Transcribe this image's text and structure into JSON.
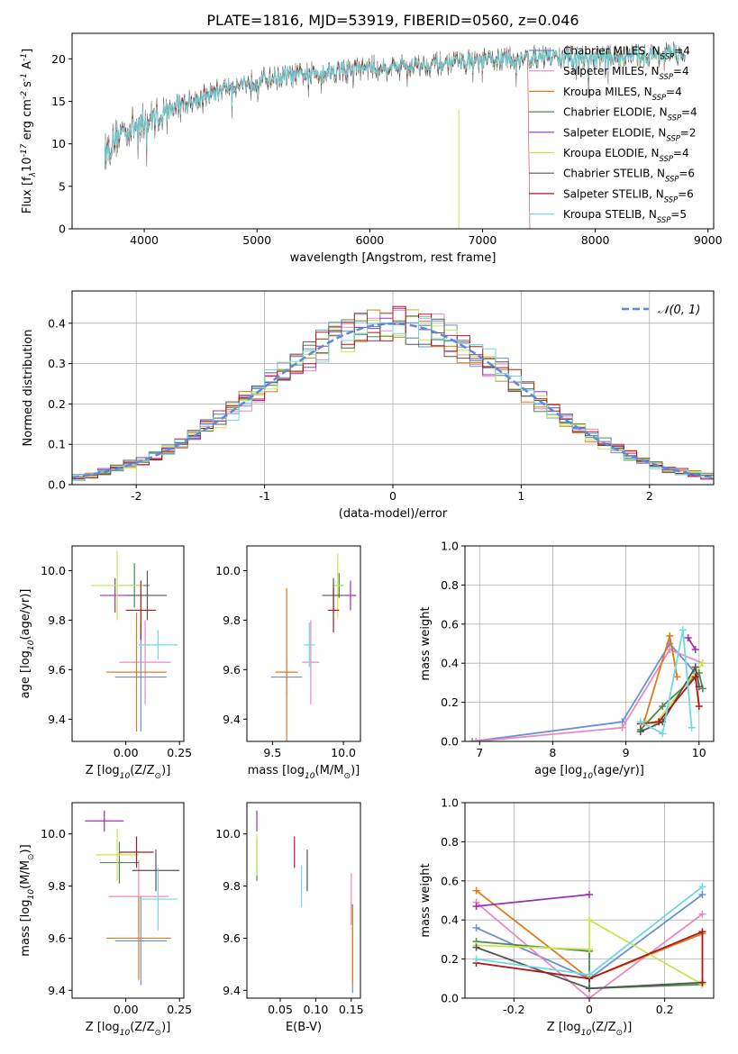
{
  "title": "PLATE=1816, MJD=53919, FIBERID=0560, z=0.046",
  "series": [
    {
      "name": "Chabrier MILES, N$_{SSP}$=4",
      "color": "#6a8fd8"
    },
    {
      "name": "Salpeter MILES, N$_{SSP}$=4",
      "color": "#e88ac0"
    },
    {
      "name": "Kroupa MILES, N$_{SSP}$=4",
      "color": "#e07b1a"
    },
    {
      "name": "Chabrier ELODIE, N$_{SSP}$=4",
      "color": "#4e8a4e"
    },
    {
      "name": "Salpeter ELODIE, N$_{SSP}$=2",
      "color": "#9b30b0"
    },
    {
      "name": "Kroupa ELODIE, N$_{SSP}$=4",
      "color": "#c8e650"
    },
    {
      "name": "Chabrier STELIB, N$_{SSP}$=6",
      "color": "#555555"
    },
    {
      "name": "Salpeter STELIB, N$_{SSP}$=6",
      "color": "#b01818"
    },
    {
      "name": "Kroupa STELIB, N$_{SSP}$=5",
      "color": "#70d8e0"
    }
  ],
  "chart_data": [
    {
      "id": "spectrum",
      "type": "line",
      "xlabel": "wavelength [Angstrom, rest frame]",
      "ylabel": "Flux [f$_\\lambda$10$^{-17}$ erg cm$^{-2}$ s$^{-1}$ A$^{-1}$]",
      "xlim": [
        3360,
        9050
      ],
      "ylim": [
        0,
        23
      ],
      "xticks": [
        4000,
        5000,
        6000,
        7000,
        8000,
        9000
      ],
      "yticks": [
        0,
        5,
        10,
        15,
        20
      ],
      "legend": "right",
      "continuum": [
        [
          3650,
          9
        ],
        [
          3800,
          11.5
        ],
        [
          4000,
          12.5
        ],
        [
          4300,
          14.5
        ],
        [
          4700,
          16.5
        ],
        [
          5000,
          17.5
        ],
        [
          5500,
          18.3
        ],
        [
          6000,
          19
        ],
        [
          6500,
          19.3
        ],
        [
          7000,
          19.8
        ],
        [
          7500,
          20.2
        ],
        [
          8000,
          20.2
        ],
        [
          8500,
          20.4
        ],
        [
          8800,
          20.6
        ]
      ]
    },
    {
      "id": "residuals",
      "type": "bar",
      "xlabel": "(data-model)/error",
      "ylabel": "Normed distribution",
      "xlim": [
        -2.5,
        2.5
      ],
      "ylim": [
        0,
        0.48
      ],
      "xticks": [
        -2,
        -1,
        0,
        1,
        2
      ],
      "yticks": [
        0.0,
        0.1,
        0.2,
        0.3,
        0.4
      ],
      "gaussian_label": "$\\mathcal{N}(0, 1)$",
      "bin_width": 0.1,
      "legend": "top-right",
      "grid": true
    },
    {
      "id": "age_vs_Z",
      "type": "scatter",
      "xlabel": "Z [log$_{10}$(Z/Z$_\\odot$)]",
      "ylabel": "age  [log$_{10}$(age/yr)]",
      "xlim": [
        -0.25,
        0.27
      ],
      "ylim": [
        9.31,
        10.1
      ],
      "xticks": [
        0.0,
        0.25
      ],
      "yticks": [
        9.4,
        9.6,
        9.8,
        10.0
      ],
      "points": [
        {
          "x": 0.07,
          "xerr": 0.12,
          "y": 9.57,
          "yerr": 0.22
        },
        {
          "x": 0.09,
          "xerr": 0.12,
          "y": 9.63,
          "yerr": 0.17
        },
        {
          "x": 0.05,
          "xerr": 0.14,
          "y": 9.59,
          "yerr": 0.24
        },
        {
          "x": 0.04,
          "xerr": 0.07,
          "y": 9.94,
          "yerr": 0.09
        },
        {
          "x": -0.05,
          "xerr": 0.07,
          "y": 9.9,
          "yerr": 0.07
        },
        {
          "x": -0.04,
          "xerr": 0.12,
          "y": 9.94,
          "yerr": 0.14
        },
        {
          "x": 0.1,
          "xerr": 0.09,
          "y": 9.9,
          "yerr": 0.1
        },
        {
          "x": 0.07,
          "xerr": 0.07,
          "y": 9.84,
          "yerr": 0.12
        },
        {
          "x": 0.15,
          "xerr": 0.09,
          "y": 9.7,
          "yerr": 0.06
        }
      ]
    },
    {
      "id": "age_vs_mass",
      "type": "scatter",
      "xlabel": "mass [log$_{10}$(M/M$_\\odot$)]",
      "ylabel": "",
      "xlim": [
        9.32,
        10.12
      ],
      "ylim": [
        9.31,
        10.1
      ],
      "xticks": [
        9.5,
        10.0
      ],
      "yticks": [
        9.4,
        9.6,
        9.8,
        10.0
      ],
      "points": [
        {
          "x": 9.6,
          "xerr": 0.11,
          "y": 9.57,
          "yerr": 0.08
        },
        {
          "x": 9.77,
          "xerr": 0.06,
          "y": 9.63,
          "yerr": 0.17
        },
        {
          "x": 9.6,
          "xerr": 0.08,
          "y": 9.59,
          "yerr": 0.34
        },
        {
          "x": 9.97,
          "xerr": 0.03,
          "y": 9.94,
          "yerr": 0.05
        },
        {
          "x": 10.05,
          "xerr": 0.04,
          "y": 9.9,
          "yerr": 0.06
        },
        {
          "x": 9.96,
          "xerr": 0.04,
          "y": 9.94,
          "yerr": 0.13
        },
        {
          "x": 9.93,
          "xerr": 0.08,
          "y": 9.9,
          "yerr": 0.07
        },
        {
          "x": 9.93,
          "xerr": 0.04,
          "y": 9.84,
          "yerr": 0.09
        },
        {
          "x": 9.76,
          "xerr": 0.04,
          "y": 9.7,
          "yerr": 0.09
        }
      ]
    },
    {
      "id": "weight_vs_age",
      "type": "line",
      "xlabel": "age  [log$_{10}$(age/yr)]",
      "ylabel": "mass weight",
      "xlim": [
        6.8,
        10.2
      ],
      "ylim": [
        0,
        1.0
      ],
      "xticks": [
        7,
        8,
        9,
        10
      ],
      "yticks": [
        0.0,
        0.2,
        0.4,
        0.6,
        0.8,
        1.0
      ],
      "grid": true,
      "lines": [
        [
          [
            6.9,
            0
          ],
          [
            8.95,
            0.1
          ],
          [
            9.6,
            0.5
          ],
          [
            9.95,
            0.35
          ]
        ],
        [
          [
            6.95,
            0
          ],
          [
            8.95,
            0.07
          ],
          [
            9.6,
            0.47
          ],
          [
            10.05,
            0.4
          ]
        ],
        [
          [
            9.25,
            0.1
          ],
          [
            9.6,
            0.54
          ],
          [
            9.7,
            0.33
          ]
        ],
        [
          [
            9.2,
            0.06
          ],
          [
            9.5,
            0.18
          ],
          [
            10.0,
            0.35
          ],
          [
            10.05,
            0.27
          ]
        ],
        [
          [
            9.85,
            0.53
          ],
          [
            9.95,
            0.47
          ]
        ],
        [
          [
            9.2,
            0.1
          ],
          [
            9.4,
            0.09
          ],
          [
            10.05,
            0.4
          ]
        ],
        [
          [
            9.2,
            0.05
          ],
          [
            9.5,
            0.1
          ],
          [
            9.95,
            0.38
          ],
          [
            10.0,
            0.28
          ]
        ],
        [
          [
            9.2,
            0.09
          ],
          [
            9.45,
            0.1
          ],
          [
            9.95,
            0.33
          ],
          [
            10.0,
            0.18
          ]
        ],
        [
          [
            9.2,
            0.1
          ],
          [
            9.5,
            0.04
          ],
          [
            9.78,
            0.57
          ],
          [
            9.9,
            0.07
          ]
        ]
      ]
    },
    {
      "id": "mass_vs_Z",
      "type": "scatter",
      "xlabel": "Z [log$_{10}$(Z/Z$_\\odot$)]",
      "ylabel": "mass [log$_{10}$(M/M$_\\odot$)]",
      "xlim": [
        -0.25,
        0.27
      ],
      "ylim": [
        9.37,
        10.12
      ],
      "xticks": [
        0.0,
        0.25
      ],
      "yticks": [
        9.4,
        9.6,
        9.8,
        10.0
      ],
      "points": [
        {
          "x": 0.07,
          "xerr": 0.12,
          "y": 9.59,
          "yerr": 0.17
        },
        {
          "x": 0.06,
          "xerr": 0.14,
          "y": 9.76,
          "yerr": 0.14
        },
        {
          "x": 0.06,
          "xerr": 0.15,
          "y": 9.6,
          "yerr": 0.16
        },
        {
          "x": -0.03,
          "xerr": 0.09,
          "y": 9.89,
          "yerr": 0.08
        },
        {
          "x": -0.1,
          "xerr": 0.09,
          "y": 10.05,
          "yerr": 0.04
        },
        {
          "x": -0.04,
          "xerr": 0.1,
          "y": 9.92,
          "yerr": 0.1
        },
        {
          "x": 0.14,
          "xerr": 0.11,
          "y": 9.86,
          "yerr": 0.08
        },
        {
          "x": 0.05,
          "xerr": 0.08,
          "y": 9.93,
          "yerr": 0.06
        },
        {
          "x": 0.15,
          "xerr": 0.09,
          "y": 9.75,
          "yerr": 0.12
        }
      ]
    },
    {
      "id": "mass_vs_ebv",
      "type": "scatter",
      "xlabel": "E(B-V)",
      "ylabel": "",
      "xlim": [
        0.003,
        0.163
      ],
      "ylim": [
        9.37,
        10.12
      ],
      "xticks": [
        0.05,
        0.1,
        0.15
      ],
      "yticks": [
        9.4,
        9.6,
        9.8,
        10.0
      ],
      "points": [
        {
          "x": 0.152,
          "y": 9.56,
          "yerr": 0.17
        },
        {
          "x": 0.15,
          "y": 9.75,
          "yerr": 0.1
        },
        {
          "x": 0.152,
          "y": 9.58,
          "yerr": 0.15
        },
        {
          "x": 0.017,
          "y": 9.9,
          "yerr": 0.08
        },
        {
          "x": 0.017,
          "y": 10.05,
          "yerr": 0.04
        },
        {
          "x": 0.017,
          "y": 9.92,
          "yerr": 0.08
        },
        {
          "x": 0.088,
          "y": 9.86,
          "yerr": 0.08
        },
        {
          "x": 0.07,
          "y": 9.93,
          "yerr": 0.06
        },
        {
          "x": 0.08,
          "y": 9.8,
          "yerr": 0.08
        }
      ]
    },
    {
      "id": "weight_vs_Z",
      "type": "line",
      "xlabel": "Z [log$_{10}$(Z/Z$_\\odot$)]",
      "ylabel": "mass weight",
      "xlim": [
        -0.33,
        0.33
      ],
      "ylim": [
        0,
        1.0
      ],
      "xticks": [
        -0.2,
        0.0,
        0.2
      ],
      "yticks": [
        0.0,
        0.2,
        0.4,
        0.6,
        0.8,
        1.0
      ],
      "grid": true,
      "lines": [
        [
          [
            -0.3,
            0.36
          ],
          [
            0.0,
            0.1
          ],
          [
            0.3,
            0.53
          ]
        ],
        [
          [
            -0.3,
            0.49
          ],
          [
            0.0,
            0.0
          ],
          [
            0.3,
            0.43
          ]
        ],
        [
          [
            -0.3,
            0.55
          ],
          [
            0.0,
            0.1
          ],
          [
            0.3,
            0.33
          ]
        ],
        [
          [
            -0.3,
            0.29
          ],
          [
            0.0,
            0.24
          ],
          [
            0.0,
            0.05
          ],
          [
            0.3,
            0.07
          ]
        ],
        [
          [
            -0.3,
            0.47
          ],
          [
            0.0,
            0.53
          ]
        ],
        [
          [
            -0.3,
            0.27
          ],
          [
            0.0,
            0.25
          ],
          [
            0.0,
            0.4
          ],
          [
            0.3,
            0.07
          ]
        ],
        [
          [
            -0.3,
            0.26
          ],
          [
            0.0,
            0.05
          ],
          [
            0.3,
            0.08
          ]
        ],
        [
          [
            -0.3,
            0.18
          ],
          [
            0.0,
            0.1
          ],
          [
            0.3,
            0.34
          ],
          [
            0.3,
            0.08
          ]
        ],
        [
          [
            -0.3,
            0.2
          ],
          [
            0.0,
            0.12
          ],
          [
            0.3,
            0.57
          ]
        ]
      ]
    }
  ]
}
